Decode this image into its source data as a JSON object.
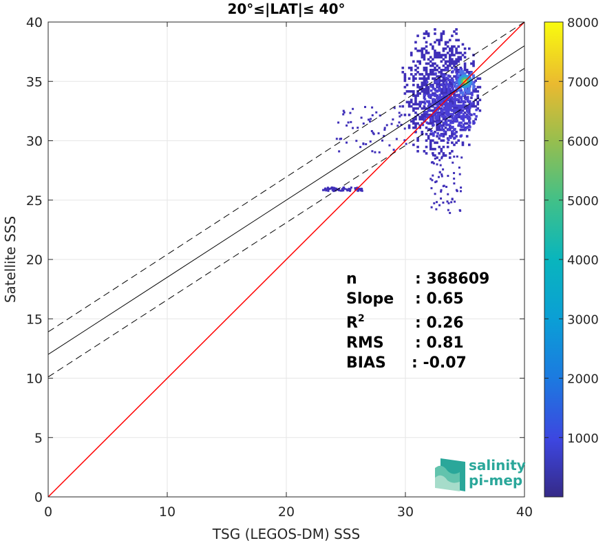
{
  "chart_data": {
    "type": "heatmap",
    "title": "20°≤|LAT|≤ 40°",
    "xlabel": "TSG (LEGOS-DM) SSS",
    "ylabel": "Satellite SSS",
    "xlim": [
      0,
      40
    ],
    "ylim": [
      0,
      40
    ],
    "xticks": [
      0,
      10,
      20,
      30,
      40
    ],
    "yticks": [
      0,
      5,
      10,
      15,
      20,
      25,
      30,
      35,
      40
    ],
    "grid": true,
    "colorbar": {
      "range": [
        0,
        8000
      ],
      "ticks": [
        1000,
        2000,
        3000,
        4000,
        5000,
        6000,
        7000,
        8000
      ],
      "colormap": "parula"
    },
    "lines": [
      {
        "kind": "one-to-one",
        "color": "#ff0000",
        "x": [
          0,
          40
        ],
        "y": [
          0,
          40
        ]
      },
      {
        "kind": "regression",
        "color": "#000000",
        "x": [
          0,
          40
        ],
        "y": [
          12.0,
          38.0
        ]
      },
      {
        "kind": "upper-bound",
        "color": "#000000",
        "dashed": true,
        "x": [
          0,
          40
        ],
        "y": [
          13.9,
          40.0
        ]
      },
      {
        "kind": "lower-bound",
        "color": "#000000",
        "dashed": true,
        "x": [
          0,
          40
        ],
        "y": [
          10.1,
          36.1
        ]
      }
    ],
    "density_clusters": [
      {
        "x_range": [
          29.5,
          36.2
        ],
        "y_range": [
          28.5,
          39.5
        ],
        "level": "low"
      },
      {
        "x_range": [
          31.0,
          36.0
        ],
        "y_range": [
          30.0,
          36.0
        ],
        "level": "low-mid"
      },
      {
        "x_range": [
          34.0,
          35.8
        ],
        "y_range": [
          33.8,
          35.8
        ],
        "level": "high"
      }
    ],
    "density_peak": {
      "x": 35.0,
      "y": 35.0,
      "count": 8000
    },
    "sparse_features": [
      {
        "x_range": [
          23.0,
          26.3
        ],
        "y": 26.0,
        "note": "trailing points"
      },
      {
        "x_range": [
          24.0,
          30.0
        ],
        "y_range": [
          29.0,
          33.0
        ],
        "note": "scattered points"
      },
      {
        "x_range": [
          32.0,
          34.7
        ],
        "y_range": [
          24.0,
          29.0
        ],
        "note": "vertical streaks"
      }
    ],
    "stats": [
      {
        "label": "n",
        "value": ": 368609"
      },
      {
        "label": "Slope",
        "value": ": 0.65"
      },
      {
        "label": "R2",
        "value": ": 0.26"
      },
      {
        "label": "RMS",
        "value": ": 0.81"
      },
      {
        "label": "BIAS",
        "value": ": -0.07"
      }
    ]
  },
  "logo": {
    "line1": "salinity",
    "line2": "pi-mep"
  }
}
